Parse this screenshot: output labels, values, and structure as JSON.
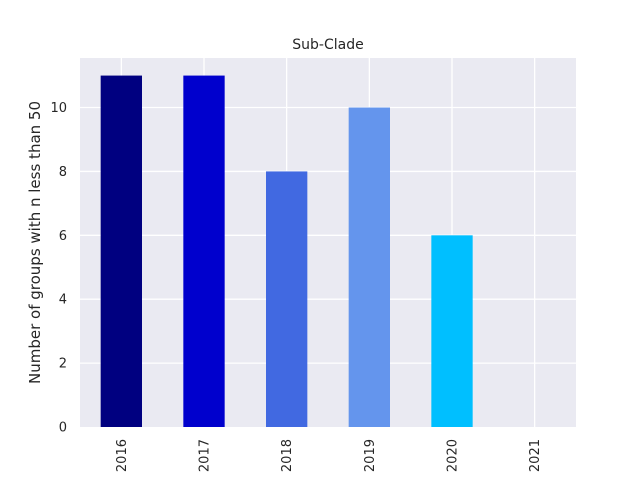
{
  "chart_data": {
    "type": "bar",
    "title": "Sub-Clade",
    "xlabel": "",
    "ylabel": "Number of groups with n less than 50",
    "categories": [
      "2016",
      "2017",
      "2018",
      "2019",
      "2020",
      "2021"
    ],
    "values": [
      11,
      11,
      8,
      10,
      6,
      0
    ],
    "colors": [
      "#000080",
      "#0000cd",
      "#4169e1",
      "#6495ed",
      "#00bfff",
      "#87cefa"
    ],
    "ylim": [
      0,
      11.55
    ],
    "yticks": [
      0,
      2,
      4,
      6,
      8,
      10
    ],
    "grid": true,
    "background": "#eaeaf2",
    "x_tick_rotation": "vertical"
  }
}
